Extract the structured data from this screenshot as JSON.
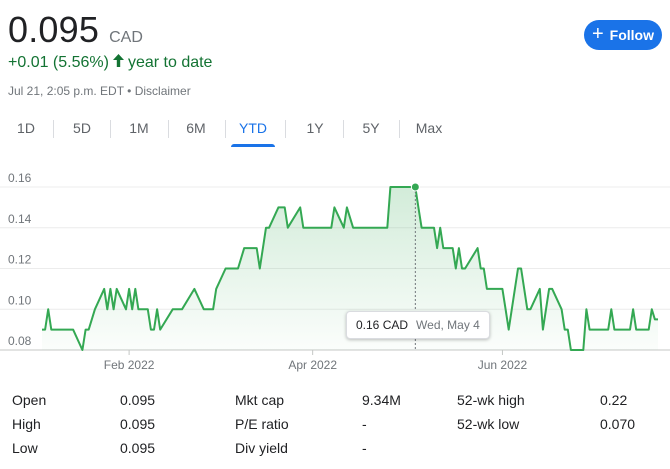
{
  "header": {
    "price": "0.095",
    "currency": "CAD",
    "change": "+0.01 (5.56%)",
    "change_period": "year to date",
    "timestamp": "Jul 21, 2:05 p.m. EDT",
    "disclaimer": "Disclaimer",
    "separator": " • ",
    "follow_label": "Follow",
    "up_color": "#137333",
    "accent_color": "#1a73e8"
  },
  "tabs": [
    "1D",
    "5D",
    "1M",
    "6M",
    "YTD",
    "1Y",
    "5Y",
    "Max"
  ],
  "active_tab": "YTD",
  "tooltip": {
    "value": "0.16 CAD",
    "date": "Wed, May 4"
  },
  "chart_data": {
    "type": "area",
    "line_color": "#34a853",
    "x_ticks": [
      "Feb 2022",
      "Apr 2022",
      "Jun 2022"
    ],
    "y_ticks": [
      "0.08",
      "0.10",
      "0.12",
      "0.14",
      "0.16"
    ],
    "ylim": [
      0.08,
      0.16
    ],
    "xlim": [
      "2022-01-04",
      "2022-07-21"
    ],
    "grid": true,
    "hover_point": {
      "x": "2022-05-04",
      "y": 0.16
    },
    "series": [
      {
        "x": [
          "2022-01-04",
          "2022-01-05",
          "2022-01-06",
          "2022-01-07",
          "2022-01-10",
          "2022-01-11",
          "2022-01-14",
          "2022-01-17",
          "2022-01-18",
          "2022-01-19",
          "2022-01-21",
          "2022-01-24",
          "2022-01-25",
          "2022-01-26",
          "2022-01-27",
          "2022-01-28",
          "2022-01-31",
          "2022-02-01",
          "2022-02-02",
          "2022-02-03",
          "2022-02-04",
          "2022-02-07",
          "2022-02-08",
          "2022-02-09",
          "2022-02-10",
          "2022-02-11",
          "2022-02-15",
          "2022-02-18",
          "2022-02-22",
          "2022-02-25",
          "2022-02-28",
          "2022-03-01",
          "2022-03-04",
          "2022-03-07",
          "2022-03-08",
          "2022-03-10",
          "2022-03-11",
          "2022-03-14",
          "2022-03-15",
          "2022-03-16",
          "2022-03-17",
          "2022-03-18",
          "2022-03-21",
          "2022-03-23",
          "2022-03-24",
          "2022-03-28",
          "2022-03-29",
          "2022-04-01",
          "2022-04-04",
          "2022-04-05",
          "2022-04-07",
          "2022-04-08",
          "2022-04-11",
          "2022-04-12",
          "2022-04-14",
          "2022-04-18",
          "2022-04-19",
          "2022-04-20",
          "2022-04-21",
          "2022-04-22",
          "2022-04-25",
          "2022-04-26",
          "2022-04-27",
          "2022-05-02",
          "2022-05-03",
          "2022-05-04",
          "2022-05-05",
          "2022-05-06",
          "2022-05-09",
          "2022-05-10",
          "2022-05-11",
          "2022-05-12",
          "2022-05-13",
          "2022-05-16",
          "2022-05-17",
          "2022-05-18",
          "2022-05-19",
          "2022-05-20",
          "2022-05-24",
          "2022-05-25",
          "2022-05-26",
          "2022-05-27",
          "2022-05-30",
          "2022-05-31",
          "2022-06-01",
          "2022-06-02",
          "2022-06-03",
          "2022-06-06",
          "2022-06-07",
          "2022-06-08",
          "2022-06-09",
          "2022-06-10",
          "2022-06-13",
          "2022-06-14",
          "2022-06-15",
          "2022-06-16",
          "2022-06-17",
          "2022-06-20",
          "2022-06-21",
          "2022-06-22",
          "2022-06-23",
          "2022-06-24",
          "2022-06-27",
          "2022-06-28",
          "2022-06-29",
          "2022-07-04",
          "2022-07-05",
          "2022-07-06",
          "2022-07-07",
          "2022-07-08",
          "2022-07-11",
          "2022-07-12",
          "2022-07-13",
          "2022-07-14",
          "2022-07-15",
          "2022-07-18",
          "2022-07-19",
          "2022-07-20",
          "2022-07-21"
        ],
        "y": [
          0.09,
          0.09,
          0.1,
          0.09,
          0.09,
          0.09,
          0.09,
          0.08,
          0.09,
          0.09,
          0.1,
          0.11,
          0.1,
          0.11,
          0.1,
          0.11,
          0.1,
          0.11,
          0.1,
          0.11,
          0.1,
          0.1,
          0.09,
          0.09,
          0.1,
          0.09,
          0.1,
          0.1,
          0.11,
          0.1,
          0.1,
          0.11,
          0.12,
          0.12,
          0.12,
          0.13,
          0.13,
          0.13,
          0.12,
          0.13,
          0.14,
          0.14,
          0.15,
          0.15,
          0.14,
          0.15,
          0.14,
          0.14,
          0.14,
          0.14,
          0.14,
          0.15,
          0.14,
          0.15,
          0.14,
          0.14,
          0.14,
          0.14,
          0.14,
          0.14,
          0.14,
          0.16,
          0.16,
          0.16,
          0.16,
          0.16,
          0.15,
          0.14,
          0.14,
          0.14,
          0.13,
          0.14,
          0.13,
          0.13,
          0.12,
          0.13,
          0.12,
          0.12,
          0.13,
          0.12,
          0.12,
          0.11,
          0.11,
          0.11,
          0.11,
          0.1,
          0.09,
          0.12,
          0.12,
          0.11,
          0.1,
          0.1,
          0.11,
          0.09,
          0.1,
          0.11,
          0.11,
          0.1,
          0.09,
          0.09,
          0.08,
          0.08,
          0.08,
          0.1,
          0.09,
          0.09,
          0.09,
          0.1,
          0.09,
          0.09,
          0.09,
          0.09,
          0.1,
          0.09,
          0.09,
          0.09,
          0.1,
          0.095,
          0.095
        ]
      }
    ]
  },
  "stats": {
    "rows": [
      [
        {
          "label": "Open",
          "value": "0.095"
        },
        {
          "label": "Mkt cap",
          "value": "9.34M"
        },
        {
          "label": "52-wk high",
          "value": "0.22"
        }
      ],
      [
        {
          "label": "High",
          "value": "0.095"
        },
        {
          "label": "P/E ratio",
          "value": "-"
        },
        {
          "label": "52-wk low",
          "value": "0.070"
        }
      ],
      [
        {
          "label": "Low",
          "value": "0.095"
        },
        {
          "label": "Div yield",
          "value": "-"
        }
      ]
    ]
  }
}
